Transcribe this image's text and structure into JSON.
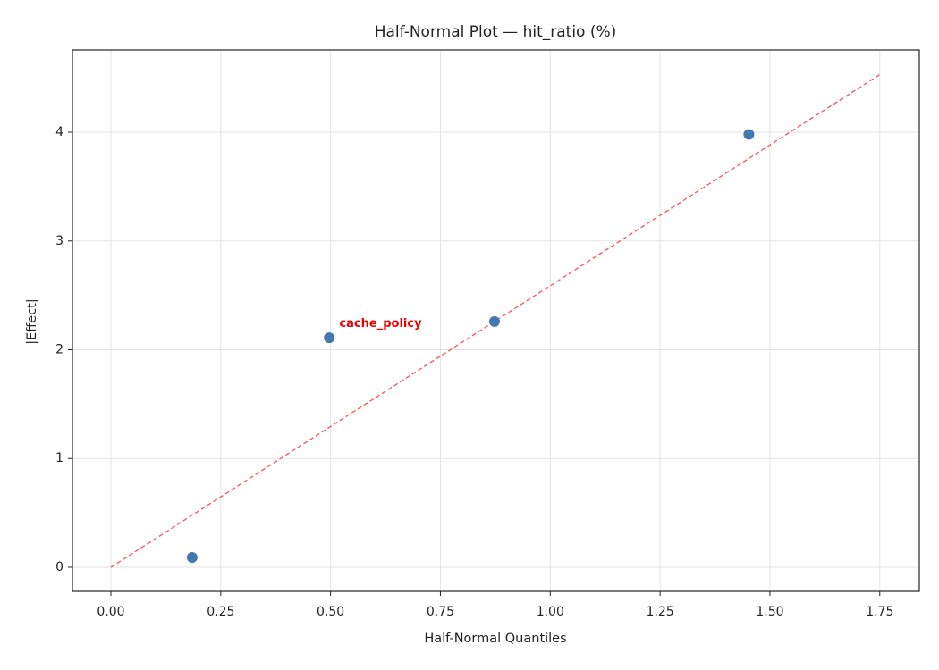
{
  "chart_data": {
    "type": "scatter",
    "title": "Half-Normal Plot — hit_ratio (%)",
    "x_label": "Half-Normal Quantiles",
    "y_label": "|Effect|",
    "x": [
      0.185,
      0.497,
      0.873,
      1.452
    ],
    "values": [
      0.09,
      2.11,
      2.26,
      3.98
    ],
    "color": "#4479b0",
    "reference_line": {
      "x": [
        0,
        1.75
      ],
      "y": [
        0,
        4.53
      ],
      "color": "#f06060",
      "style": "dashed"
    },
    "annotations": [
      {
        "text": "cache_policy",
        "x": 0.52,
        "y": 2.24,
        "color": "#ee0000"
      }
    ],
    "xlim": [
      -0.0875,
      1.84
    ],
    "ylim": [
      -0.222,
      4.756
    ],
    "xticks": [
      {
        "value": 0,
        "label": "0.00"
      },
      {
        "value": 0.25,
        "label": "0.25"
      },
      {
        "value": 0.5,
        "label": "0.50"
      },
      {
        "value": 0.75,
        "label": "0.75"
      },
      {
        "value": 1,
        "label": "1.00"
      },
      {
        "value": 1.25,
        "label": "1.25"
      },
      {
        "value": 1.5,
        "label": "1.50"
      },
      {
        "value": 1.75,
        "label": "1.75"
      }
    ],
    "yticks": [
      0,
      1,
      2,
      3,
      4
    ],
    "grid": true
  }
}
